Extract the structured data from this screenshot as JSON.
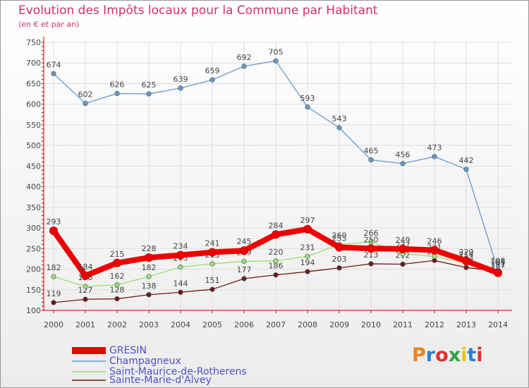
{
  "title": "Evolution des Impôts locaux pour la Commune par Habitant",
  "subtitle": "(en € et par an)",
  "logo_text": "Proxiti",
  "colors": {
    "title": "#d0306a",
    "axis": "#cc0000",
    "grid": "#dddddd",
    "label": "#444444"
  },
  "chart_data": {
    "type": "line",
    "title": "Evolution des Impôts locaux pour la Commune par Habitant",
    "ylabel": "(en € et par an)",
    "xlabel": "",
    "ylim": [
      100,
      750
    ],
    "yticks": [
      100,
      150,
      200,
      250,
      300,
      350,
      400,
      450,
      500,
      550,
      600,
      650,
      700,
      750
    ],
    "x": [
      "2000",
      "2001",
      "2002",
      "2003",
      "2004",
      "2005",
      "2006",
      "2007",
      "2008",
      "2009",
      "2010",
      "2011",
      "2012",
      "2013",
      "2014"
    ],
    "grid": true,
    "legend_position": "bottom-left",
    "series": [
      {
        "name": "Sainte-Marie-d'Alvey",
        "color": "#6a1a1a",
        "values": [
          119,
          127,
          128,
          138,
          144,
          151,
          177,
          186,
          194,
          203,
          213,
          212,
          221,
          204,
          195
        ]
      },
      {
        "name": "Saint-Maurice-de-Rotherens",
        "color": "#99dd77",
        "values": [
          182,
          158,
          162,
          182,
          205,
          213,
          219,
          220,
          231,
          260,
          266,
          237,
          231,
          214,
          187
        ]
      },
      {
        "name": "Champagneux",
        "color": "#6699cc",
        "values": [
          674,
          602,
          626,
          625,
          639,
          659,
          692,
          705,
          593,
          543,
          465,
          456,
          473,
          442,
          198
        ]
      },
      {
        "name": "GRESIN",
        "color": "#ee0000",
        "values": [
          293,
          184,
          215,
          228,
          234,
          241,
          245,
          284,
          297,
          253,
          250,
          249,
          246,
          220,
          191
        ]
      }
    ],
    "legend_order": [
      "GRESIN",
      "Champagneux",
      "Saint-Maurice-de-Rotherens",
      "Sainte-Marie-d'Alvey"
    ]
  }
}
